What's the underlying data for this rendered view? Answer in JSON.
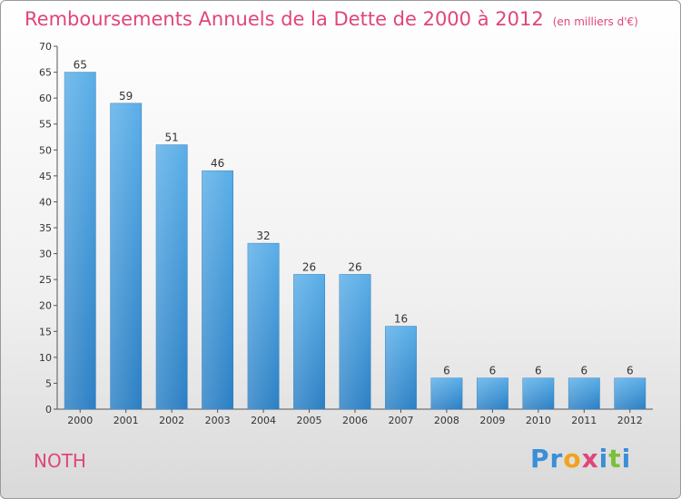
{
  "header": {
    "title": "Remboursements Annuels de la Dette de 2000 à 2012",
    "unit": "(en milliers d'€)"
  },
  "footer": {
    "commune": "NOTH",
    "logo_letters": [
      "P",
      "r",
      "o",
      "x",
      "i",
      "t",
      "i"
    ]
  },
  "colors": {
    "title": "#e0457b",
    "bar_top": "#5aaee8",
    "bar_bottom": "#2a7fc4",
    "logo": [
      "#3a8fd8",
      "#3a8fd8",
      "#f2a21c",
      "#e0457b",
      "#3a8fd8",
      "#7bbf3a",
      "#3a8fd8"
    ]
  },
  "chart_data": {
    "type": "bar",
    "title": "Remboursements Annuels de la Dette de 2000 à 2012",
    "xlabel": "",
    "ylabel": "",
    "categories": [
      "2000",
      "2001",
      "2002",
      "2003",
      "2004",
      "2005",
      "2006",
      "2007",
      "2008",
      "2009",
      "2010",
      "2011",
      "2012"
    ],
    "values": [
      65,
      59,
      51,
      46,
      32,
      26,
      26,
      16,
      6,
      6,
      6,
      6,
      6
    ],
    "ylim": [
      0,
      70
    ],
    "yticks": [
      0,
      5,
      10,
      15,
      20,
      25,
      30,
      35,
      40,
      45,
      50,
      55,
      60,
      65,
      70
    ],
    "grid": false,
    "data_labels": true
  }
}
